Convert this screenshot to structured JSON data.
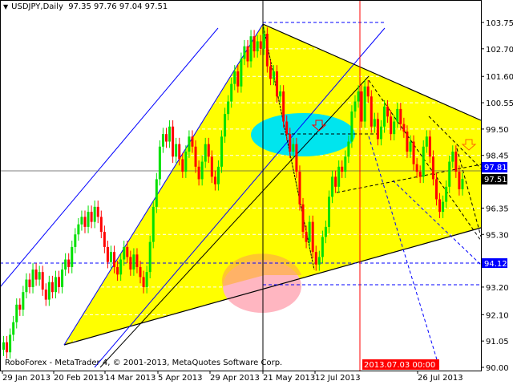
{
  "chart_data": {
    "type": "candlestick",
    "symbol_title": "USDJPY,Daily",
    "ohlc_readout": "97.35 97.76 97.04 97.51",
    "close": [
      91.0,
      90.6,
      91.3,
      91.8,
      92.5,
      92.3,
      93.0,
      93.5,
      93.2,
      93.9,
      93.5,
      93.8,
      93.1,
      92.7,
      93.4,
      93.0,
      93.6,
      93.2,
      93.9,
      94.3,
      94.0,
      94.8,
      95.3,
      95.7,
      96.0,
      95.6,
      96.2,
      95.8,
      96.4,
      96.0,
      95.4,
      94.8,
      94.2,
      94.6,
      94.0,
      93.7,
      94.3,
      94.8,
      94.4,
      93.9,
      94.5,
      94.0,
      93.6,
      93.2,
      93.8,
      95.0,
      96.4,
      97.5,
      98.8,
      99.3,
      99.0,
      99.6,
      98.4,
      98.9,
      98.3,
      97.8,
      98.6,
      99.2,
      98.8,
      98.0,
      97.5,
      98.2,
      98.9,
      98.4,
      97.6,
      97.3,
      98.0,
      99.2,
      100.1,
      100.6,
      101.3,
      101.8,
      101.2,
      102.3,
      102.8,
      102.2,
      103.2,
      102.6,
      103.0,
      102.7,
      103.3,
      102.0,
      101.5,
      101.8,
      100.8,
      101.0,
      99.8,
      99.3,
      98.6,
      98.9,
      97.8,
      96.5,
      95.4,
      95.0,
      95.8,
      94.6,
      94.1,
      94.4,
      95.2,
      95.6,
      96.8,
      97.6,
      97.2,
      98.0,
      97.8,
      98.4,
      99.0,
      100.2,
      100.6,
      101.0,
      99.8,
      101.2,
      100.8,
      99.6,
      99.9,
      99.1,
      99.6,
      100.4,
      100.0,
      99.3,
      99.8,
      100.3,
      99.7,
      99.4,
      98.6,
      99.0,
      98.1,
      97.8,
      97.6,
      98.8,
      99.2,
      98.4,
      97.5,
      96.7,
      96.2,
      96.6,
      97.2,
      98.2,
      98.6,
      97.8,
      97.1,
      97.51
    ],
    "y_ticks": [
      "103.75",
      "102.70",
      "101.60",
      "100.55",
      "99.50",
      "98.45",
      "96.35",
      "95.30",
      "93.20",
      "92.10",
      "91.05",
      "90.00"
    ],
    "ylim": [
      90.0,
      103.75
    ],
    "x_ticks": [
      "29 Jan 2013",
      "20 Feb 2013",
      "14 Mar 2013",
      "5 Apr 2013",
      "29 Apr 2013",
      "21 May 2013",
      "12 Jul 2013",
      "26 Jul 2013"
    ],
    "cursor_time_label": "2013.07.03 00:00",
    "price_tags": {
      "level_a": "97.81",
      "current": "97.51",
      "level_b": "94.12"
    },
    "colors": {
      "bull": "#00e000",
      "bear": "#ff0000",
      "zone": "#ffff00",
      "ellipse_a": "#00e5ee",
      "ellipse_b": "#ffb6c1",
      "tag_blue": "#0000ff",
      "cursor": "#ff0000"
    },
    "grid": true
  },
  "footer": {
    "copyright": "RoboForex - MetaTrader 4, © 2001-2013, MetaQuotes Software Corp."
  }
}
